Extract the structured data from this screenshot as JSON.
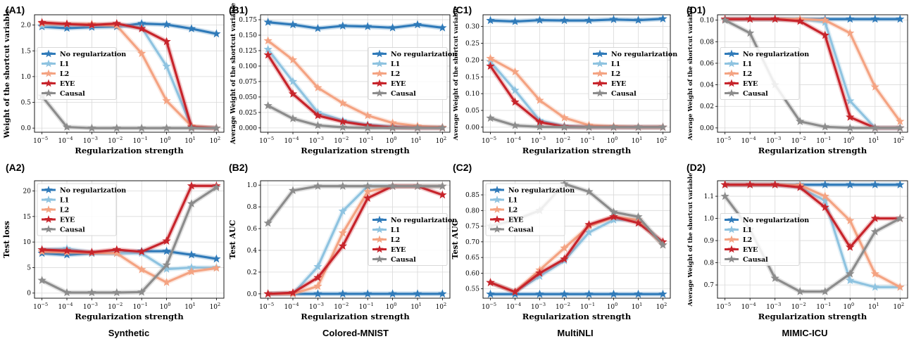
{
  "colors": {
    "No regularization": "#2f7ab9",
    "L1": "#8ec3e0",
    "L2": "#f4a382",
    "EYE": "#c7242b",
    "Causal": "#8c8c8c"
  },
  "column_captions": [
    "Synthetic",
    "Colored-MNIST",
    "MultiNLI",
    "MIMIC-ICU"
  ],
  "chart_data": [
    {
      "panel": "(A1)",
      "type": "line",
      "xlabel": "Regularization strength",
      "ylabel": "Weight of the shortcut variable",
      "x_log": [
        -5,
        -4,
        -3,
        -2,
        -1,
        0,
        1,
        2
      ],
      "ylim": [
        -0.08,
        2.2
      ],
      "yticks": [
        0.0,
        0.5,
        1.0,
        1.5,
        2.0
      ],
      "ytick_labels": [
        "0.0",
        "0.5",
        "1.0",
        "1.5",
        "2.0"
      ],
      "legend_position": "center-left",
      "series": [
        {
          "name": "No regularization",
          "values": [
            1.97,
            1.94,
            1.96,
            1.97,
            2.03,
            2.01,
            1.93,
            1.83
          ]
        },
        {
          "name": "L1",
          "values": [
            1.99,
            2.01,
            1.99,
            2.0,
            1.95,
            1.2,
            0.02,
            0.0
          ]
        },
        {
          "name": "L2",
          "values": [
            2.03,
            2.02,
            2.02,
            1.99,
            1.45,
            0.53,
            0.04,
            0.0
          ]
        },
        {
          "name": "EYE",
          "values": [
            2.05,
            2.02,
            2.0,
            2.03,
            1.93,
            1.68,
            0.02,
            0.0
          ]
        },
        {
          "name": "Causal",
          "values": [
            0.62,
            0.02,
            0.0,
            0.0,
            0.0,
            0.0,
            0.0,
            0.0
          ]
        }
      ]
    },
    {
      "panel": "(B1)",
      "type": "line",
      "xlabel": "Regularization strength",
      "ylabel": "Average Weight of the shortcut variable",
      "x_log": [
        -5,
        -4,
        -3,
        -2,
        -1,
        0,
        1,
        2
      ],
      "ylim": [
        -0.007,
        0.183
      ],
      "yticks": [
        0,
        0.025,
        0.05,
        0.075,
        0.1,
        0.125,
        0.15,
        0.175
      ],
      "ytick_labels": [
        "0.000",
        "0.025",
        "0.050",
        "0.075",
        "0.100",
        "0.125",
        "0.150",
        "0.175"
      ],
      "legend_position": "center-right",
      "series": [
        {
          "name": "No regularization",
          "values": [
            0.171,
            0.167,
            0.161,
            0.165,
            0.164,
            0.162,
            0.167,
            0.162
          ]
        },
        {
          "name": "L1",
          "values": [
            0.127,
            0.075,
            0.025,
            0.012,
            0.005,
            0.002,
            0.001,
            0.001
          ]
        },
        {
          "name": "L2",
          "values": [
            0.141,
            0.11,
            0.065,
            0.04,
            0.02,
            0.008,
            0.003,
            0.001
          ]
        },
        {
          "name": "EYE",
          "values": [
            0.118,
            0.055,
            0.02,
            0.01,
            0.004,
            0.001,
            0.0,
            0.0
          ]
        },
        {
          "name": "Causal",
          "values": [
            0.036,
            0.015,
            0.004,
            0.001,
            0.0,
            0.0,
            0.0,
            0.0
          ]
        }
      ]
    },
    {
      "panel": "(C1)",
      "type": "line",
      "xlabel": "Regularization strength",
      "ylabel": "Average Weight of the shortcut variable",
      "x_log": [
        -5,
        -4,
        -3,
        -2,
        -1,
        0,
        1,
        2
      ],
      "ylim": [
        -0.015,
        0.335
      ],
      "yticks": [
        0,
        0.05,
        0.1,
        0.15,
        0.2,
        0.25,
        0.3
      ],
      "ytick_labels": [
        "0.00",
        "0.05",
        "0.10",
        "0.15",
        "0.20",
        "0.25",
        "0.30"
      ],
      "legend_position": "center-right",
      "series": [
        {
          "name": "No regularization",
          "values": [
            0.318,
            0.315,
            0.319,
            0.318,
            0.318,
            0.321,
            0.319,
            0.323
          ]
        },
        {
          "name": "L1",
          "values": [
            0.195,
            0.11,
            0.02,
            0.003,
            0.001,
            0.0,
            0.0,
            0.0
          ]
        },
        {
          "name": "L2",
          "values": [
            0.205,
            0.165,
            0.08,
            0.028,
            0.006,
            0.002,
            0.0,
            0.0
          ]
        },
        {
          "name": "EYE",
          "values": [
            0.182,
            0.075,
            0.015,
            0.002,
            0.0,
            0.0,
            0.0,
            0.0
          ]
        },
        {
          "name": "Causal",
          "values": [
            0.027,
            0.005,
            0.001,
            0.0,
            0.0,
            0.0,
            0.0,
            0.0
          ]
        }
      ]
    },
    {
      "panel": "(D1)",
      "type": "line",
      "xlabel": "Regularization strength",
      "ylabel": "Average Weight of the shortcut variable",
      "x_log": [
        -5,
        -4,
        -3,
        -2,
        -1,
        0,
        1,
        2
      ],
      "ylim": [
        -0.004,
        0.105
      ],
      "yticks": [
        0,
        0.02,
        0.04,
        0.06,
        0.08,
        0.1
      ],
      "ytick_labels": [
        "0.00",
        "0.02",
        "0.04",
        "0.06",
        "0.08",
        "0.10"
      ],
      "legend_position": "center-left",
      "series": [
        {
          "name": "No regularization",
          "values": [
            0.101,
            0.101,
            0.101,
            0.101,
            0.101,
            0.101,
            0.101,
            0.101
          ]
        },
        {
          "name": "L1",
          "values": [
            0.101,
            0.101,
            0.101,
            0.101,
            0.098,
            0.025,
            0.0,
            0.0
          ]
        },
        {
          "name": "L2",
          "values": [
            0.101,
            0.101,
            0.101,
            0.101,
            0.1,
            0.088,
            0.038,
            0.006
          ]
        },
        {
          "name": "EYE",
          "values": [
            0.101,
            0.101,
            0.101,
            0.099,
            0.086,
            0.01,
            0.0,
            0.0
          ]
        },
        {
          "name": "Causal",
          "values": [
            0.1,
            0.088,
            0.04,
            0.006,
            0.001,
            0.0,
            0.0,
            0.0
          ]
        }
      ]
    },
    {
      "panel": "(A2)",
      "type": "line",
      "xlabel": "Regularization strength",
      "ylabel": "Test loss",
      "x_log": [
        -5,
        -4,
        -3,
        -2,
        -1,
        0,
        1,
        2
      ],
      "ylim": [
        -1,
        22
      ],
      "yticks": [
        0,
        5,
        10,
        15,
        20
      ],
      "ytick_labels": [
        "0",
        "5",
        "10",
        "15",
        "20"
      ],
      "legend_position": "top-left",
      "series": [
        {
          "name": "No regularization",
          "values": [
            7.8,
            7.5,
            7.8,
            7.8,
            8.2,
            8.2,
            7.5,
            6.7
          ]
        },
        {
          "name": "L1",
          "values": [
            8.5,
            8.7,
            8.0,
            7.9,
            7.8,
            4.7,
            5.0,
            5.0
          ]
        },
        {
          "name": "L2",
          "values": [
            8.1,
            8.0,
            7.9,
            7.8,
            4.6,
            2.1,
            4.2,
            4.9
          ]
        },
        {
          "name": "EYE",
          "values": [
            8.5,
            8.3,
            8.0,
            8.5,
            8.1,
            10.2,
            21.0,
            21.0
          ]
        },
        {
          "name": "Causal",
          "values": [
            2.5,
            0.1,
            0.1,
            0.1,
            0.2,
            5.5,
            17.5,
            20.7
          ]
        }
      ]
    },
    {
      "panel": "(B2)",
      "type": "line",
      "xlabel": "Regularization strength",
      "ylabel": "Test AUC",
      "x_log": [
        -5,
        -4,
        -3,
        -2,
        -1,
        0,
        1,
        2
      ],
      "ylim": [
        -0.04,
        1.04
      ],
      "yticks": [
        0,
        0.2,
        0.4,
        0.6,
        0.8,
        1.0
      ],
      "ytick_labels": [
        "0.0",
        "0.2",
        "0.4",
        "0.6",
        "0.8",
        "1.0"
      ],
      "legend_position": "center-right",
      "series": [
        {
          "name": "No regularization",
          "values": [
            0.0,
            0.0,
            0.0,
            0.0,
            0.0,
            0.0,
            0.0,
            0.0
          ]
        },
        {
          "name": "L1",
          "values": [
            0.0,
            0.0,
            0.25,
            0.76,
            0.99,
            0.99,
            0.99,
            0.99
          ]
        },
        {
          "name": "L2",
          "values": [
            0.0,
            0.0,
            0.07,
            0.56,
            0.94,
            0.99,
            0.99,
            0.99
          ]
        },
        {
          "name": "EYE",
          "values": [
            0.0,
            0.01,
            0.15,
            0.44,
            0.88,
            0.99,
            0.99,
            0.91
          ]
        },
        {
          "name": "Causal",
          "values": [
            0.65,
            0.95,
            0.99,
            0.99,
            0.99,
            0.99,
            0.99,
            0.99
          ]
        }
      ]
    },
    {
      "panel": "(C2)",
      "type": "line",
      "xlabel": "Regularization strength",
      "ylabel": "Test AUC",
      "x_log": [
        -5,
        -4,
        -3,
        -2,
        -1,
        0,
        1,
        2
      ],
      "ylim": [
        0.52,
        0.895
      ],
      "yticks": [
        0.55,
        0.6,
        0.65,
        0.7,
        0.75,
        0.8,
        0.85
      ],
      "ytick_labels": [
        "0.55",
        "0.60",
        "0.65",
        "0.70",
        "0.75",
        "0.80",
        "0.85"
      ],
      "legend_position": "top-left",
      "series": [
        {
          "name": "No regularization",
          "values": [
            0.533,
            0.533,
            0.533,
            0.533,
            0.533,
            0.533,
            0.533,
            0.533
          ]
        },
        {
          "name": "L1",
          "values": [
            0.57,
            0.54,
            0.59,
            0.64,
            0.73,
            0.77,
            0.77,
            0.69
          ]
        },
        {
          "name": "L2",
          "values": [
            0.57,
            0.54,
            0.61,
            0.68,
            0.75,
            0.78,
            0.77,
            0.69
          ]
        },
        {
          "name": "EYE",
          "values": [
            0.57,
            0.54,
            0.6,
            0.645,
            0.755,
            0.78,
            0.76,
            0.7
          ]
        },
        {
          "name": "Causal",
          "values": [
            0.75,
            0.77,
            0.8,
            0.885,
            0.86,
            0.795,
            0.78,
            0.69
          ]
        }
      ]
    },
    {
      "panel": "(D2)",
      "type": "line",
      "xlabel": "Regularization strength",
      "ylabel": "Average Weight of the shortcut variable",
      "x_log": [
        -5,
        -4,
        -3,
        -2,
        -1,
        0,
        1,
        2
      ],
      "ylim": [
        0.64,
        1.17
      ],
      "yticks": [
        0.7,
        0.8,
        0.9,
        1.0,
        1.1
      ],
      "ytick_labels": [
        "0.7",
        "0.8",
        "0.9",
        "1.0",
        "1.1"
      ],
      "legend_position": "center-left",
      "series": [
        {
          "name": "No regularization",
          "values": [
            1.152,
            1.152,
            1.152,
            1.152,
            1.152,
            1.152,
            1.152,
            1.152
          ]
        },
        {
          "name": "L1",
          "values": [
            1.152,
            1.152,
            1.152,
            1.14,
            1.08,
            0.72,
            0.69,
            0.69
          ]
        },
        {
          "name": "L2",
          "values": [
            1.152,
            1.152,
            1.152,
            1.15,
            1.1,
            0.99,
            0.75,
            0.69
          ]
        },
        {
          "name": "EYE",
          "values": [
            1.152,
            1.152,
            1.152,
            1.14,
            1.05,
            0.87,
            1.0,
            1.0
          ]
        },
        {
          "name": "Causal",
          "values": [
            1.1,
            0.95,
            0.73,
            0.67,
            0.67,
            0.75,
            0.94,
            1.0
          ]
        }
      ]
    }
  ]
}
